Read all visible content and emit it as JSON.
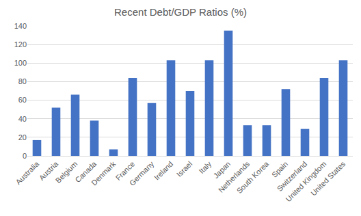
{
  "chart_data": {
    "type": "bar",
    "title": "Recent Debt/GDP Ratios (%)",
    "categories": [
      "Australia",
      "Austria",
      "Belgium",
      "Canada",
      "Denmark",
      "France",
      "Germany",
      "Ireland",
      "Israel",
      "Italy",
      "Japan",
      "Netherlands",
      "South Korea",
      "Spain",
      "Switzerland",
      "United Kingdom",
      "United States"
    ],
    "values": [
      17,
      52,
      66,
      38,
      7,
      84,
      57,
      103,
      70,
      103,
      135,
      33,
      33,
      72,
      29,
      84,
      103
    ],
    "color": "#4472c4",
    "ylim": [
      0,
      140
    ],
    "yticks": [
      0,
      20,
      40,
      60,
      80,
      100,
      120,
      140
    ],
    "grid": true
  }
}
